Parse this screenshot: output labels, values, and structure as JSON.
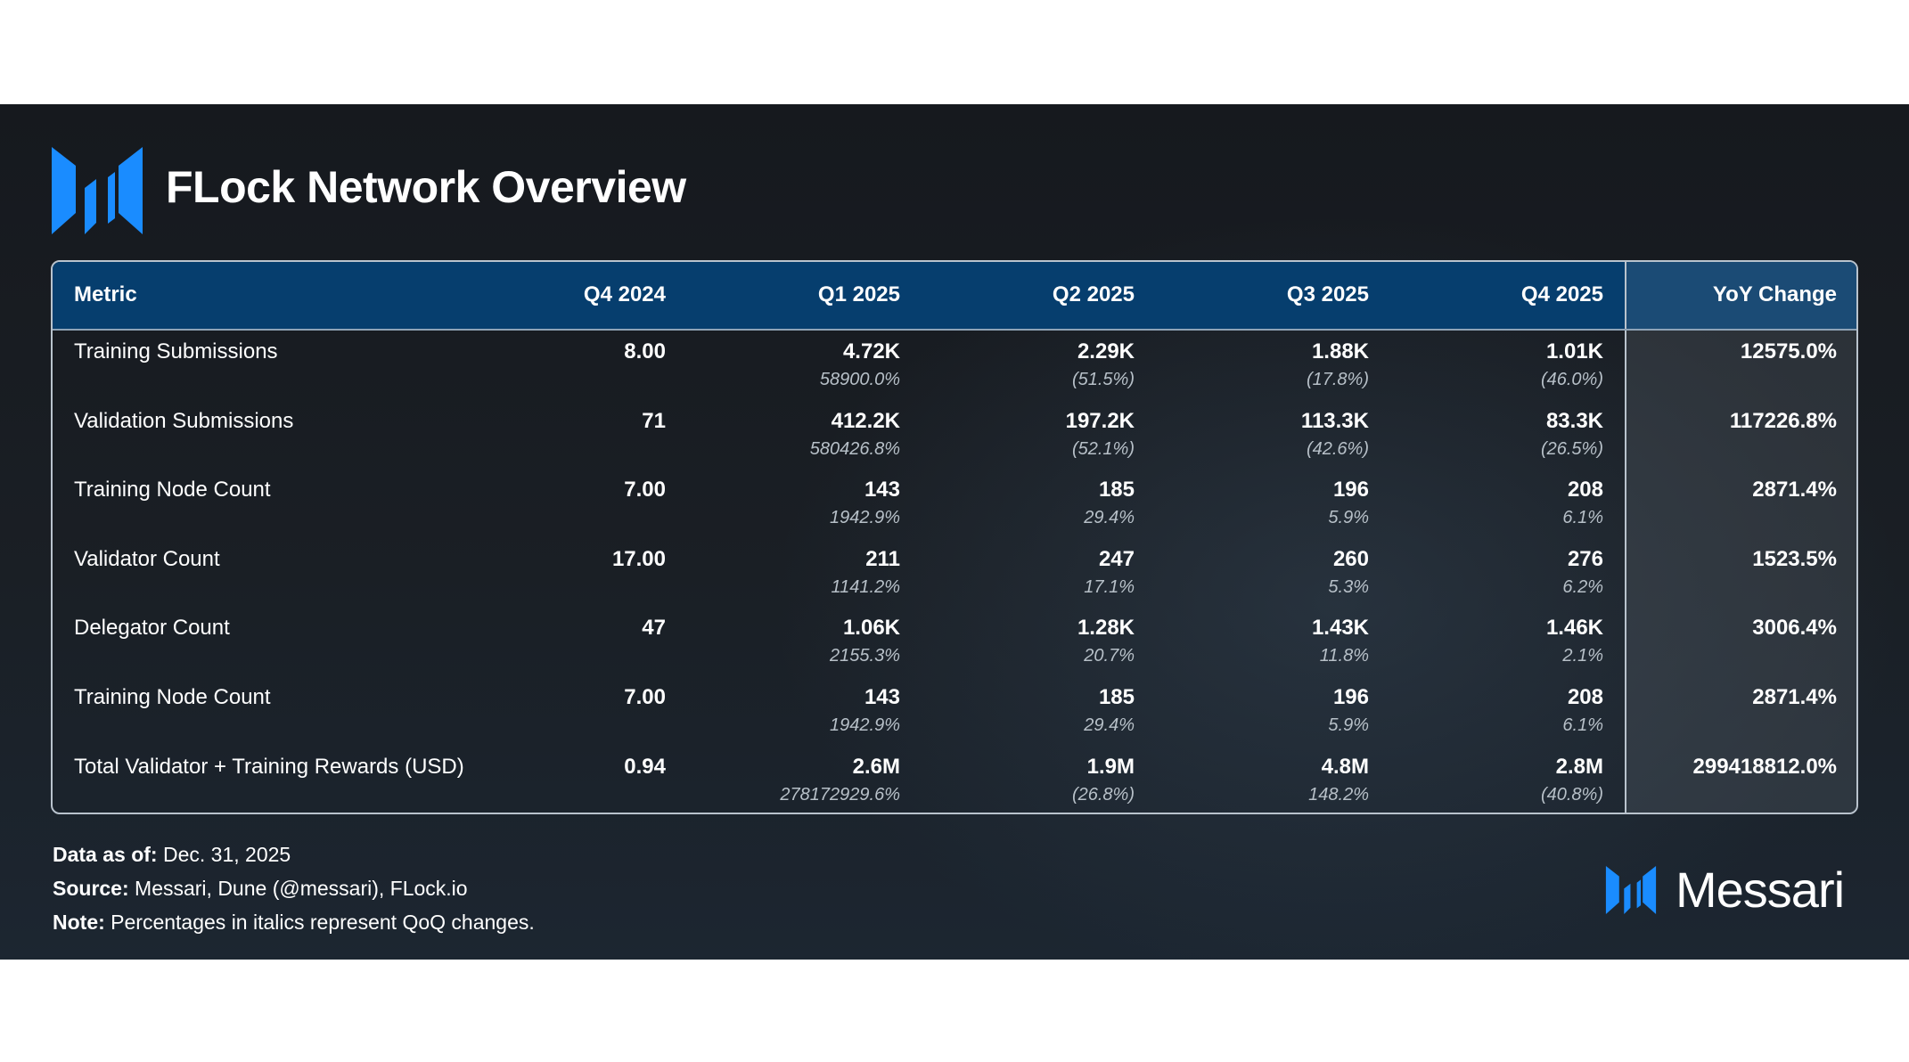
{
  "title": "FLock Network Overview",
  "brand": {
    "name": "Messari",
    "logo_icon": "messari-logo-icon",
    "accent": "#1a8cff"
  },
  "colors": {
    "header_bg": "#063e6e",
    "band_bg": "#1a1f25",
    "yoy_header_bg": "#1b4b75"
  },
  "chart_data": {
    "type": "table",
    "columns": [
      "Metric",
      "Q4 2024",
      "Q1 2025",
      "Q2 2025",
      "Q3 2025",
      "Q4 2025",
      "YoY Change"
    ],
    "rows": [
      {
        "metric": "Training Submissions",
        "values": [
          "8.00",
          "4.72K",
          "2.29K",
          "1.88K",
          "1.01K"
        ],
        "qoq": [
          "",
          "58900.0%",
          "(51.5%)",
          "(17.8%)",
          "(46.0%)"
        ],
        "yoy": "12575.0%"
      },
      {
        "metric": "Validation Submissions",
        "values": [
          "71",
          "412.2K",
          "197.2K",
          "113.3K",
          "83.3K"
        ],
        "qoq": [
          "",
          "580426.8%",
          "(52.1%)",
          "(42.6%)",
          "(26.5%)"
        ],
        "yoy": "117226.8%"
      },
      {
        "metric": "Training Node Count",
        "values": [
          "7.00",
          "143",
          "185",
          "196",
          "208"
        ],
        "qoq": [
          "",
          "1942.9%",
          "29.4%",
          "5.9%",
          "6.1%"
        ],
        "yoy": "2871.4%"
      },
      {
        "metric": "Validator Count",
        "values": [
          "17.00",
          "211",
          "247",
          "260",
          "276"
        ],
        "qoq": [
          "",
          "1141.2%",
          "17.1%",
          "5.3%",
          "6.2%"
        ],
        "yoy": "1523.5%"
      },
      {
        "metric": "Delegator Count",
        "values": [
          "47",
          "1.06K",
          "1.28K",
          "1.43K",
          "1.46K"
        ],
        "qoq": [
          "",
          "2155.3%",
          "20.7%",
          "11.8%",
          "2.1%"
        ],
        "yoy": "3006.4%"
      },
      {
        "metric": "Training Node Count",
        "values": [
          "7.00",
          "143",
          "185",
          "196",
          "208"
        ],
        "qoq": [
          "",
          "1942.9%",
          "29.4%",
          "5.9%",
          "6.1%"
        ],
        "yoy": "2871.4%"
      },
      {
        "metric": "Total Validator + Training Rewards (USD)",
        "values": [
          "0.94",
          "2.6M",
          "1.9M",
          "4.8M",
          "2.8M"
        ],
        "qoq": [
          "",
          "278172929.6%",
          "(26.8%)",
          "148.2%",
          "(40.8%)"
        ],
        "yoy": "299418812.0%"
      }
    ]
  },
  "footer": {
    "data_as_of_label": "Data as of:",
    "data_as_of_value": "Dec. 31, 2025",
    "source_label": "Source:",
    "source_value": "Messari, Dune (@messari), FLock.io",
    "note_label": "Note:",
    "note_value": "Percentages in italics represent QoQ changes."
  }
}
